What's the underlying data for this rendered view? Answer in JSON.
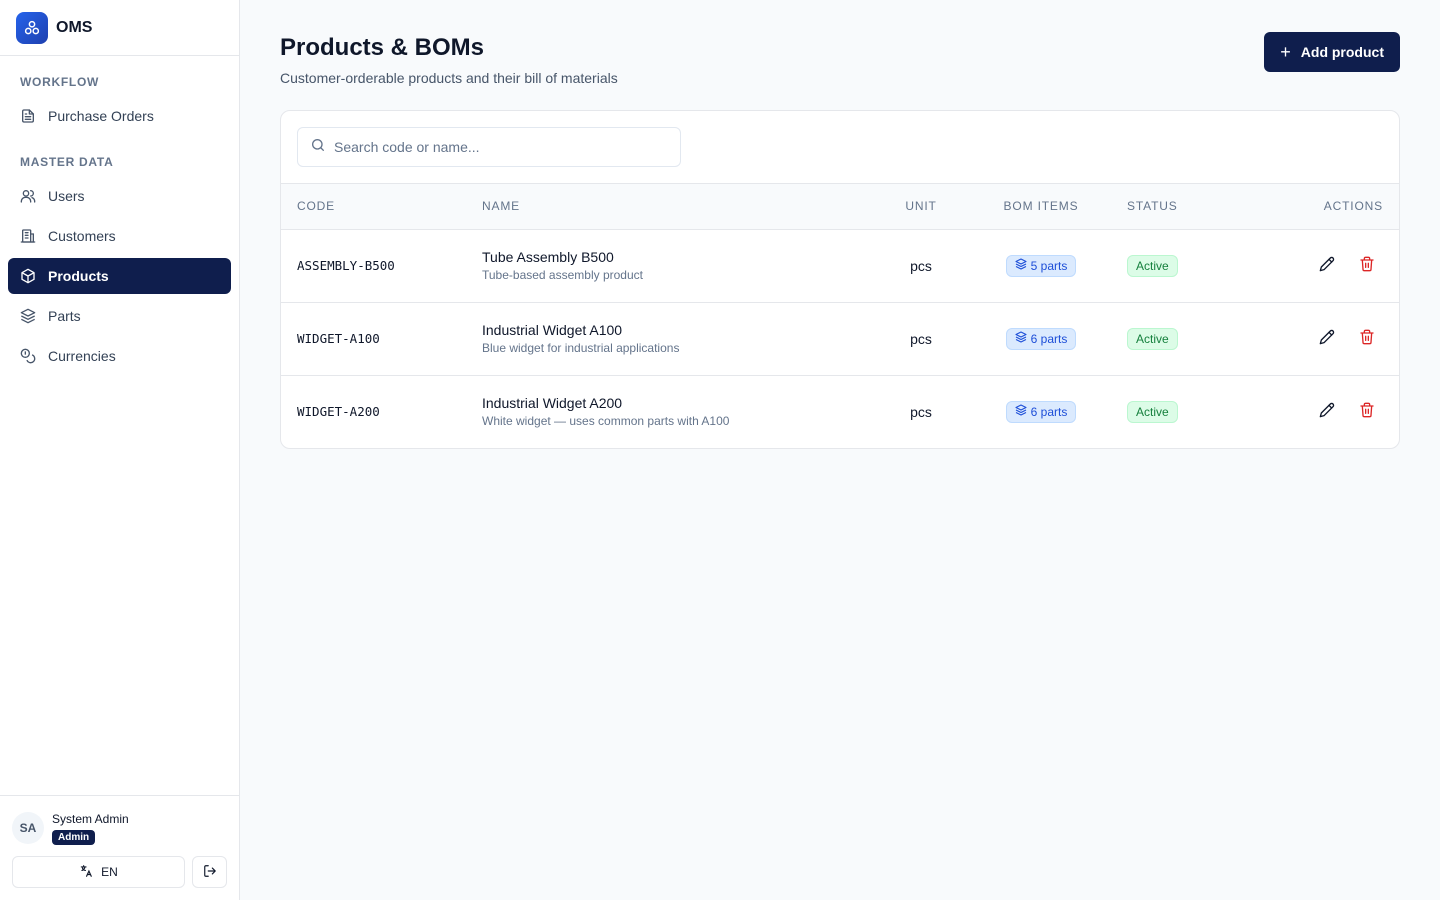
{
  "app": {
    "name": "OMS"
  },
  "sidebar": {
    "sections": [
      {
        "title": "WORKFLOW",
        "items": [
          {
            "label": "Purchase Orders",
            "icon": "file-text-icon"
          }
        ]
      },
      {
        "title": "MASTER DATA",
        "items": [
          {
            "label": "Users",
            "icon": "users-icon"
          },
          {
            "label": "Customers",
            "icon": "building-icon"
          },
          {
            "label": "Products",
            "icon": "package-icon",
            "active": true
          },
          {
            "label": "Parts",
            "icon": "layers-icon"
          },
          {
            "label": "Currencies",
            "icon": "coins-icon"
          }
        ]
      }
    ],
    "user": {
      "initials": "SA",
      "name": "System Admin",
      "role": "Admin"
    },
    "language": "EN"
  },
  "page": {
    "title": "Products & BOMs",
    "subtitle": "Customer-orderable products and their bill of materials",
    "add_label": "Add product"
  },
  "search": {
    "placeholder": "Search code or name...",
    "value": ""
  },
  "table": {
    "columns": {
      "code": "CODE",
      "name": "NAME",
      "unit": "UNIT",
      "bom": "BOM ITEMS",
      "status": "STATUS",
      "actions": "ACTIONS"
    },
    "rows": [
      {
        "code": "ASSEMBLY-B500",
        "name": "Tube Assembly B500",
        "description": "Tube-based assembly product",
        "unit": "pcs",
        "bom": "5 parts",
        "status": "Active"
      },
      {
        "code": "WIDGET-A100",
        "name": "Industrial Widget A100",
        "description": "Blue widget for industrial applications",
        "unit": "pcs",
        "bom": "6 parts",
        "status": "Active"
      },
      {
        "code": "WIDGET-A200",
        "name": "Industrial Widget A200",
        "description": "White widget — uses common parts with A100",
        "unit": "pcs",
        "bom": "6 parts",
        "status": "Active"
      }
    ]
  },
  "colors": {
    "primary": "#0f1e4d",
    "accent": "#2563eb",
    "danger": "#dc2626",
    "success": "#15803d"
  }
}
